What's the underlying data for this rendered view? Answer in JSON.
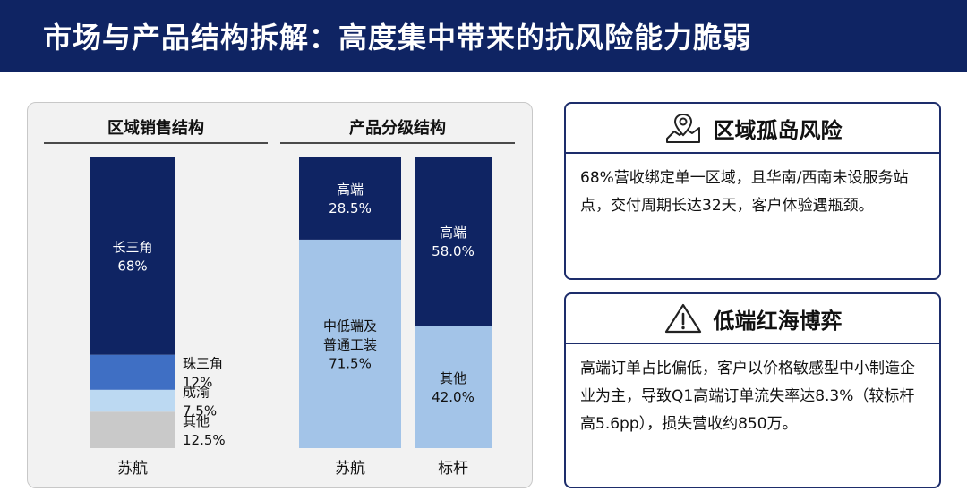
{
  "page": {
    "title": "市场与产品结构拆解：高度集中带来的抗风险能力脆弱"
  },
  "colors": {
    "header_bg": "#0f2463",
    "navy": "#0f2463",
    "blue": "#3f6fc4",
    "light_blue": "#bcd9f2",
    "pale_blue": "#a3c4e8",
    "gray": "#c9c9c9",
    "card_border": "#1d2d6b"
  },
  "chart_data": [
    {
      "type": "bar",
      "stacked": true,
      "title": "区域销售结构",
      "categories": [
        "苏航"
      ],
      "ylim": [
        0,
        100
      ],
      "series": [
        {
          "name": "其他",
          "values": [
            12.5
          ],
          "label": "其他\n12.5%",
          "color": "#c9c9c9"
        },
        {
          "name": "成渝",
          "values": [
            7.5
          ],
          "label": "成渝\n7.5%",
          "color": "#bcd9f2"
        },
        {
          "name": "珠三角",
          "values": [
            12
          ],
          "label": "珠三角\n12%",
          "color": "#3f6fc4"
        },
        {
          "name": "长三角",
          "values": [
            68
          ],
          "label": "长三角\n68%",
          "color": "#0f2463"
        }
      ]
    },
    {
      "type": "bar",
      "stacked": true,
      "title": "产品分级结构",
      "categories": [
        "苏航",
        "标杆"
      ],
      "ylim": [
        0,
        100
      ],
      "series": [
        {
          "name": "中低端及普通工装",
          "values": [
            71.5,
            null
          ],
          "label": "中低端及\n普通工装\n71.5%",
          "color": "#a3c4e8"
        },
        {
          "name": "其他",
          "values": [
            null,
            42.0
          ],
          "label": "其他\n42.0%",
          "color": "#a3c4e8"
        },
        {
          "name": "高端",
          "values": [
            28.5,
            58.0
          ],
          "labels": [
            "高端\n28.5%",
            "高端\n58.0%"
          ],
          "color": "#0f2463"
        }
      ]
    }
  ],
  "cards": [
    {
      "title": "区域孤岛风险",
      "icon": "map-pin-icon",
      "text": "68%营收绑定单一区域，且华南/西南未设服务站点，交付周期长达32天，客户体验遇瓶颈。"
    },
    {
      "title": "低端红海博弈",
      "icon": "warning-icon",
      "text": "高端订单占比偏低，客户以价格敏感型中小制造企业为主，导致Q1高端订单流失率达8.3%（较标杆高5.6pp），损失营收约850万。"
    }
  ]
}
